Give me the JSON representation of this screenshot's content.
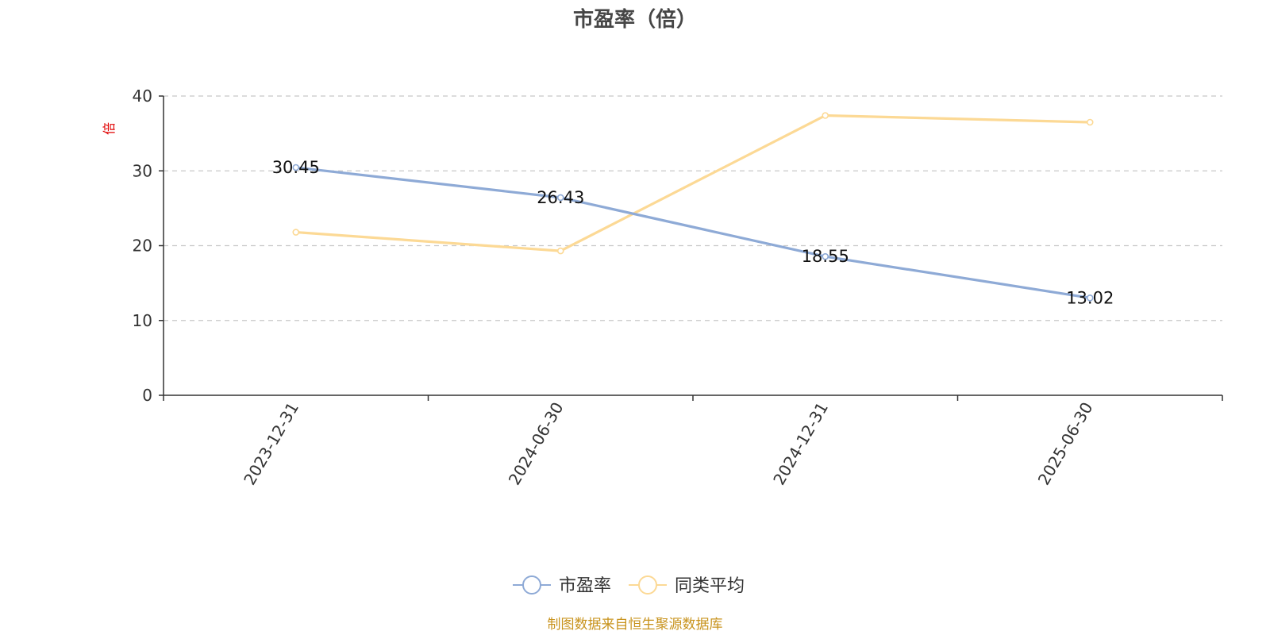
{
  "chart_data": {
    "type": "line",
    "title": "市盈率（倍）",
    "ylabel": "倍",
    "ylim": [
      0,
      40
    ],
    "yticks": [
      0,
      10,
      20,
      30,
      40
    ],
    "categories": [
      "2023-12-31",
      "2024-06-30",
      "2024-12-31",
      "2025-06-30"
    ],
    "grid": true,
    "legend_position": "bottom",
    "series": [
      {
        "name": "市盈率",
        "values": [
          30.45,
          26.43,
          18.55,
          13.02
        ],
        "color": "#8eaad6",
        "show_labels": true
      },
      {
        "name": "同类平均",
        "values": [
          21.8,
          19.3,
          37.4,
          36.5
        ],
        "color": "#fcd995",
        "show_labels": false
      }
    ]
  },
  "footer": {
    "source": "制图数据来自恒生聚源数据库"
  }
}
